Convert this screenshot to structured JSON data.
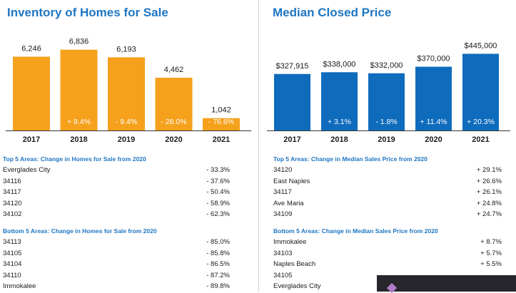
{
  "left": {
    "title": "Inventory of Homes for Sale",
    "chart_data": {
      "type": "bar",
      "title": "Inventory of Homes for Sale",
      "categories": [
        "2017",
        "2018",
        "2019",
        "2020",
        "2021"
      ],
      "values": [
        6246,
        6836,
        6193,
        4462,
        1042
      ],
      "value_labels": [
        "6,246",
        "6,836",
        "6,193",
        "4,462",
        "1,042"
      ],
      "change_labels": [
        "",
        "+ 9.4%",
        "- 9.4%",
        "- 28.0%",
        "- 76.6%"
      ],
      "color": "#f5a11c",
      "ylim": [
        0,
        7000
      ],
      "xlabel": "",
      "ylabel": ""
    },
    "top5": {
      "title": "Top 5 Areas: Change in Homes for Sale from 2020",
      "rows": [
        {
          "name": "Everglades City",
          "value": "- 33.3%"
        },
        {
          "name": "34116",
          "value": "- 37.6%"
        },
        {
          "name": "34117",
          "value": "- 50.4%"
        },
        {
          "name": "34120",
          "value": "- 58.9%"
        },
        {
          "name": "34102",
          "value": "- 62.3%"
        }
      ]
    },
    "bottom5": {
      "title": "Bottom 5 Areas: Change in Homes for Sale from 2020",
      "rows": [
        {
          "name": "34113",
          "value": "- 85.0%"
        },
        {
          "name": "34105",
          "value": "- 85.8%"
        },
        {
          "name": "34104",
          "value": "- 86.5%"
        },
        {
          "name": "34110",
          "value": "- 87.2%"
        },
        {
          "name": "Immokalee",
          "value": "- 89.8%"
        }
      ]
    }
  },
  "right": {
    "title": "Median Closed Price",
    "chart_data": {
      "type": "bar",
      "title": "Median Closed Price",
      "categories": [
        "2017",
        "2018",
        "2019",
        "2020",
        "2021"
      ],
      "values": [
        327915,
        338000,
        332000,
        370000,
        445000
      ],
      "value_labels": [
        "$327,915",
        "$338,000",
        "$332,000",
        "$370,000",
        "$445,000"
      ],
      "change_labels": [
        "",
        "+ 3.1%",
        "- 1.8%",
        "+ 11.4%",
        "+ 20.3%"
      ],
      "color": "#0f6cbd",
      "ylim": [
        0,
        480000
      ],
      "xlabel": "",
      "ylabel": ""
    },
    "top5": {
      "title": "Top 5 Areas: Change in Median Sales Price from 2020",
      "rows": [
        {
          "name": "34120",
          "value": "+ 29.1%"
        },
        {
          "name": "East Naples",
          "value": "+ 26.6%"
        },
        {
          "name": "34117",
          "value": "+ 26.1%"
        },
        {
          "name": "Ave Maria",
          "value": "+ 24.8%"
        },
        {
          "name": "34109",
          "value": "+ 24.7%"
        }
      ]
    },
    "bottom5": {
      "title": "Bottom 5 Areas: Change in Median Sales Price from 2020",
      "rows": [
        {
          "name": "Immokalee",
          "value": "+ 8.7%"
        },
        {
          "name": "34103",
          "value": "+ 5.7%"
        },
        {
          "name": "Naples Beach",
          "value": "+ 5.5%"
        },
        {
          "name": "34105",
          "value": ""
        },
        {
          "name": "Everglades City",
          "value": ""
        }
      ]
    }
  }
}
